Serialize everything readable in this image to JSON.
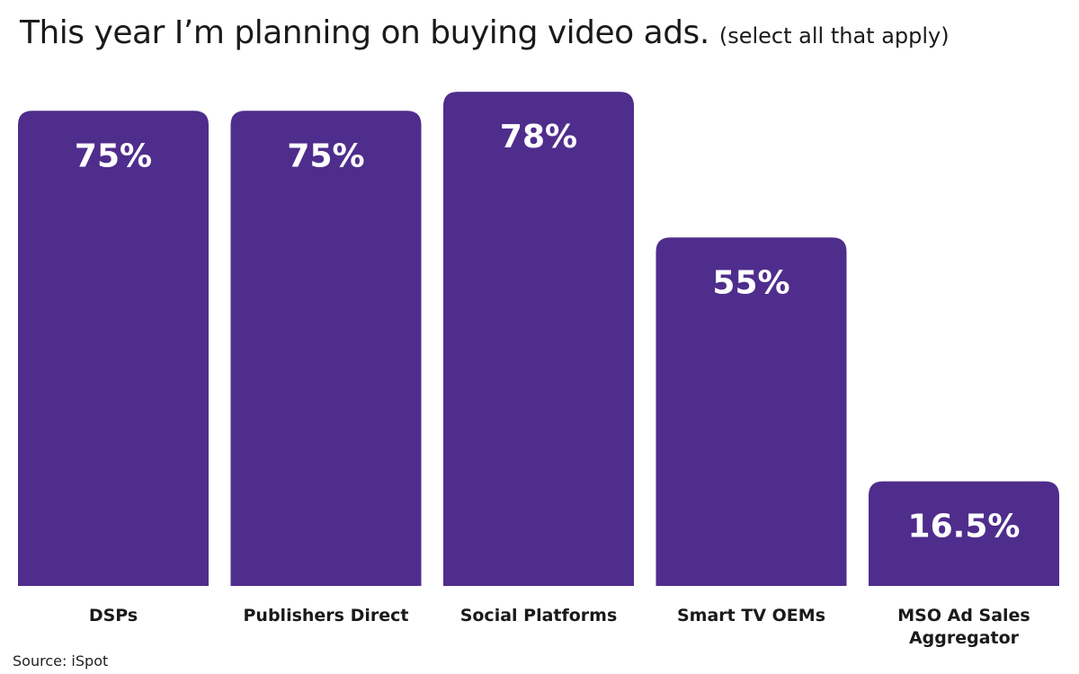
{
  "chart_data": {
    "type": "bar",
    "title": "This year I’m planning on buying video ads.",
    "subtitle": "(select all that apply)",
    "categories": [
      "DSPs",
      "Publishers Direct",
      "Social Platforms",
      "Smart TV OEMs",
      "MSO Ad Sales Aggregator"
    ],
    "category_lines": [
      [
        "DSPs"
      ],
      [
        "Publishers Direct"
      ],
      [
        "Social Platforms"
      ],
      [
        "Smart TV OEMs"
      ],
      [
        "MSO Ad Sales",
        "Aggregator"
      ]
    ],
    "values": [
      75,
      75,
      78,
      55,
      16.5
    ],
    "data_labels": [
      "75%",
      "75%",
      "78%",
      "55%",
      "16.5%"
    ],
    "ylim": [
      0,
      100
    ],
    "grid": false,
    "colors": {
      "bar": "#4f2d8c",
      "label": "#ffffff",
      "text": "#1a1a1a"
    }
  },
  "source": "Source: iSpot"
}
